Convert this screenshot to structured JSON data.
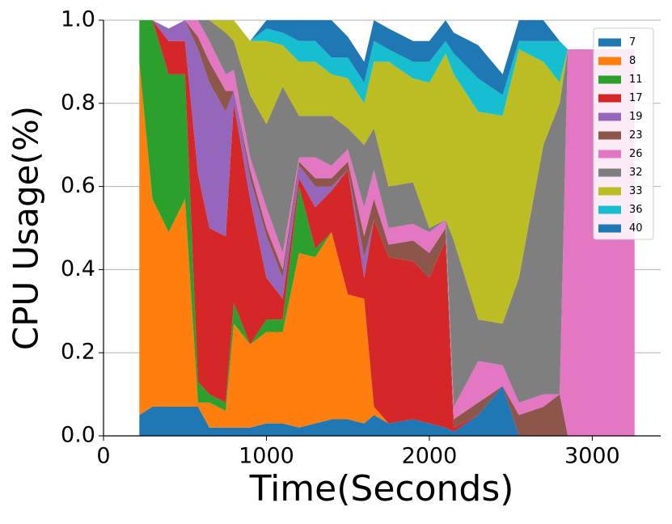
{
  "chart_data": {
    "type": "area",
    "stacked": true,
    "xlabel": "Time(Seconds)",
    "ylabel": "CPU Usage(%)",
    "x": [
      220,
      300,
      400,
      500,
      580,
      650,
      750,
      800,
      900,
      1000,
      1100,
      1200,
      1300,
      1400,
      1500,
      1600,
      1660,
      1750,
      1900,
      2000,
      2100,
      2150,
      2300,
      2450,
      2550,
      2700,
      2800,
      2850,
      3000,
      3260
    ],
    "series": [
      {
        "name": "7",
        "color": "#1f77b4",
        "values": [
          0.05,
          0.07,
          0.07,
          0.07,
          0.07,
          0.02,
          0.02,
          0.02,
          0.02,
          0.03,
          0.03,
          0.02,
          0.03,
          0.04,
          0.04,
          0.03,
          0.05,
          0.03,
          0.04,
          0.03,
          0.02,
          0.01,
          0.05,
          0.12,
          0,
          0,
          0,
          0,
          0,
          0
        ]
      },
      {
        "name": "8",
        "color": "#ff7f0e",
        "values": [
          0.85,
          0.5,
          0.42,
          0.5,
          0.01,
          0.06,
          0.04,
          0.25,
          0.2,
          0.22,
          0.22,
          0.42,
          0.4,
          0.45,
          0.3,
          0.3,
          0.02,
          0,
          0,
          0,
          0,
          0,
          0,
          0,
          0,
          0,
          0,
          0,
          0,
          0
        ]
      },
      {
        "name": "11",
        "color": "#2ca02c",
        "values": [
          0.1,
          0.43,
          0.38,
          0.3,
          0.05,
          0.02,
          0.02,
          0.05,
          0,
          0.03,
          0.03,
          0.16,
          0.02,
          0,
          0,
          0,
          0,
          0,
          0,
          0,
          0,
          0,
          0,
          0,
          0,
          0,
          0,
          0,
          0,
          0
        ]
      },
      {
        "name": "17",
        "color": "#d62728",
        "values": [
          0,
          0,
          0.08,
          0.08,
          0.5,
          0.4,
          0.4,
          0.48,
          0.35,
          0.1,
          0.05,
          0.02,
          0.1,
          0.1,
          0.3,
          0.05,
          0.45,
          0.4,
          0.38,
          0.35,
          0.45,
          0.01,
          0,
          0,
          0,
          0,
          0,
          0,
          0,
          0
        ]
      },
      {
        "name": "19",
        "color": "#9467bd",
        "values": [
          0,
          0,
          0.03,
          0.05,
          0.3,
          0.35,
          0.3,
          0.03,
          0.05,
          0.1,
          0.05,
          0.03,
          0.05,
          0.01,
          0,
          0.05,
          0,
          0,
          0,
          0,
          0,
          0,
          0,
          0,
          0,
          0,
          0,
          0,
          0,
          0
        ]
      },
      {
        "name": "23",
        "color": "#8c564b",
        "values": [
          0,
          0,
          0,
          0,
          0.03,
          0.05,
          0.05,
          0,
          0.02,
          0.02,
          0.02,
          0.01,
          0.02,
          0.02,
          0.02,
          0.05,
          0.05,
          0.03,
          0.05,
          0.06,
          0.03,
          0.02,
          0.03,
          0,
          0.05,
          0.07,
          0.1,
          0,
          0,
          0
        ]
      },
      {
        "name": "26",
        "color": "#e377c2",
        "values": [
          0,
          0,
          0,
          0,
          0.04,
          0.05,
          0.04,
          0.05,
          0.03,
          0.05,
          0.04,
          0.01,
          0.05,
          0.03,
          0.03,
          0.07,
          0.07,
          0.04,
          0.04,
          0.05,
          0.02,
          0.03,
          0.1,
          0.05,
          0.03,
          0.03,
          0,
          0.93,
          0.93,
          0.93
        ]
      },
      {
        "name": "32",
        "color": "#7f7f7f",
        "values": [
          0,
          0,
          0,
          0,
          0,
          0.05,
          0.1,
          0.07,
          0.15,
          0.2,
          0.4,
          0.1,
          0.1,
          0.12,
          0.05,
          0.15,
          0.1,
          0.1,
          0.1,
          0.01,
          0,
          0.4,
          0.1,
          0.1,
          0.3,
          0.6,
          0.7,
          0,
          0,
          0
        ]
      },
      {
        "name": "33",
        "color": "#bcbd22",
        "values": [
          0,
          0,
          0,
          0,
          0,
          0,
          0.03,
          0.05,
          0.13,
          0.2,
          0.1,
          0.13,
          0.13,
          0.1,
          0.12,
          0.1,
          0.16,
          0.3,
          0.25,
          0.35,
          0.4,
          0.4,
          0.5,
          0.5,
          0.55,
          0.2,
          0.05,
          0,
          0,
          0
        ]
      },
      {
        "name": "36",
        "color": "#17becf",
        "values": [
          0,
          0,
          0,
          0,
          0,
          0,
          0,
          0,
          0,
          0.03,
          0.03,
          0.05,
          0.05,
          0.04,
          0.05,
          0.05,
          0.05,
          0.03,
          0.04,
          0.05,
          0.03,
          0.05,
          0.08,
          0.05,
          0.02,
          0.05,
          0.1,
          0,
          0,
          0
        ]
      },
      {
        "name": "40",
        "color": "#1f77b4",
        "values": [
          0,
          0,
          0,
          0,
          0,
          0,
          0,
          0,
          0,
          0.02,
          0.03,
          0.05,
          0.05,
          0.09,
          0.05,
          0.05,
          0.05,
          0.05,
          0.05,
          0.05,
          0.05,
          0.05,
          0.08,
          0.05,
          0.05,
          0.05,
          0,
          0,
          0,
          0
        ]
      }
    ],
    "xlim": [
      0,
      3420
    ],
    "ylim": [
      0,
      1
    ],
    "xticks": [
      0,
      1000,
      2000,
      3000
    ],
    "yticks": [
      {
        "value": 0,
        "label": "0.0"
      },
      0.2,
      0.4,
      0.6,
      0.8,
      {
        "value": 1,
        "label": "1.0"
      }
    ],
    "grid": true,
    "legend": "upper right"
  }
}
